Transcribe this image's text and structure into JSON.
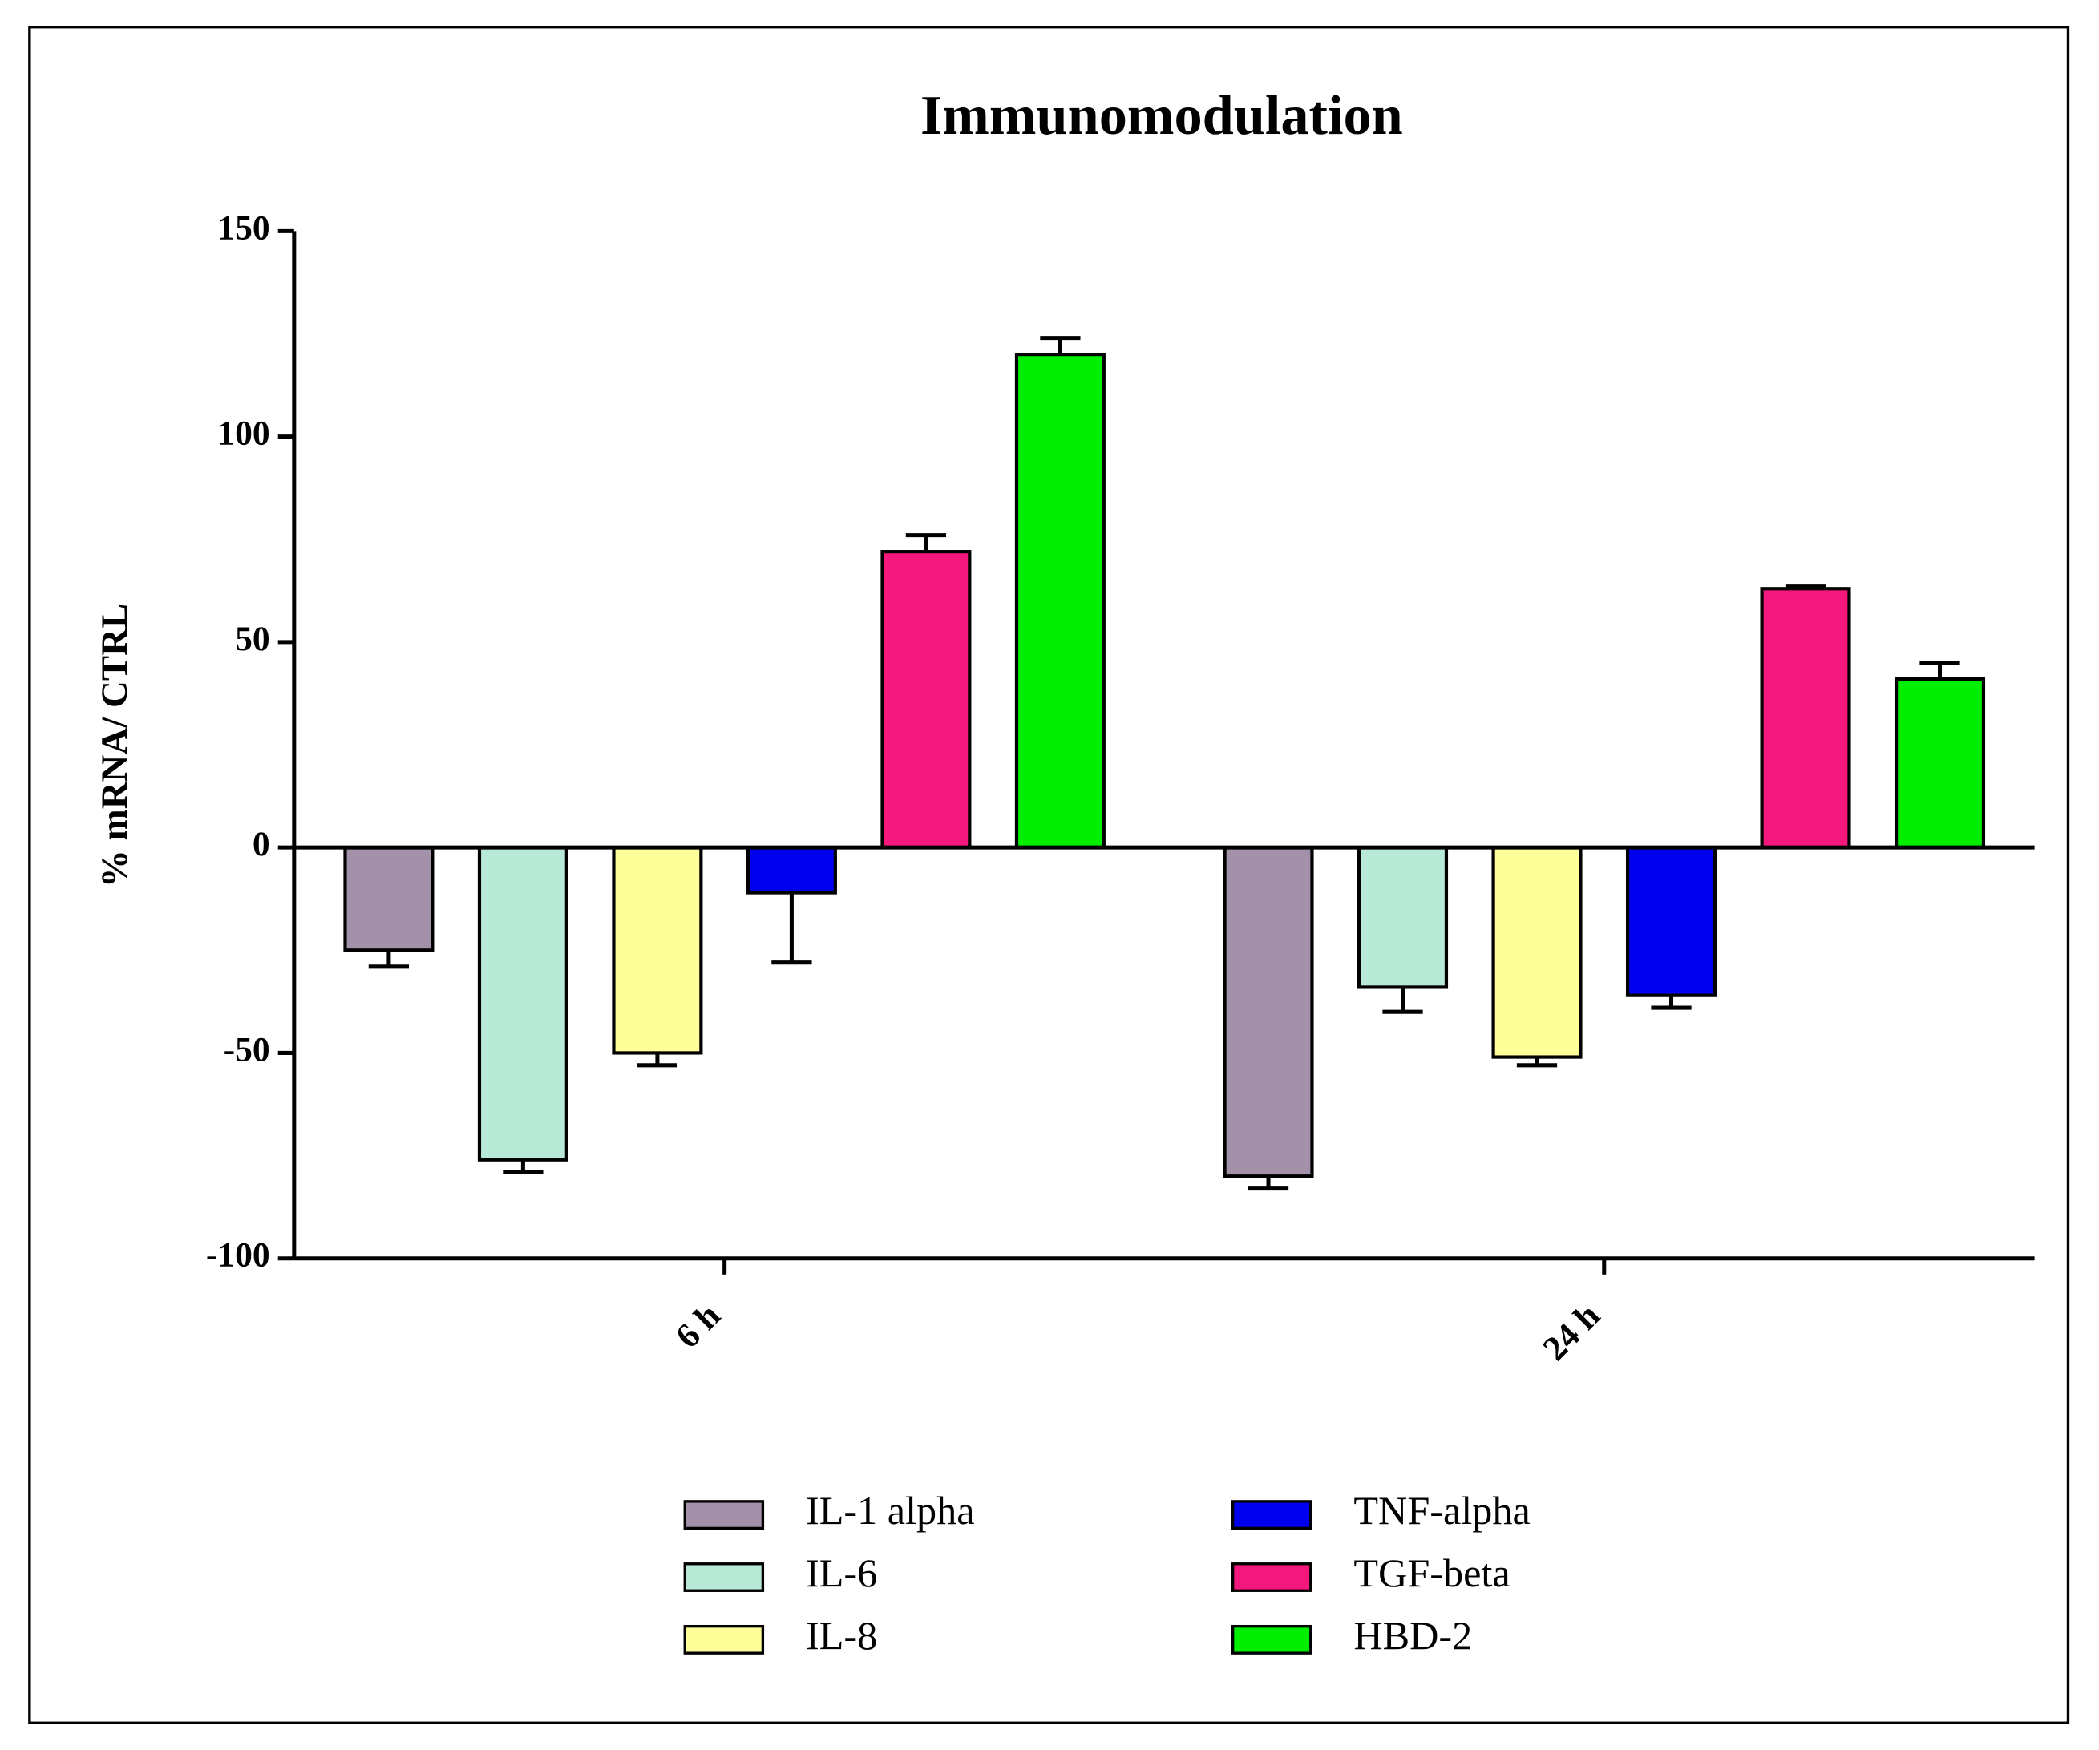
{
  "chart_data": {
    "type": "bar",
    "title": "Immunomodulation",
    "ylabel": "% mRNA/ CTRL",
    "categories": [
      "6 h",
      "24 h"
    ],
    "series": [
      {
        "name": "IL-1 alpha",
        "color": "#a391aa",
        "values": [
          -25,
          -80
        ],
        "errors": [
          4,
          3
        ]
      },
      {
        "name": "IL-6",
        "color": "#b8e8d6",
        "values": [
          -76,
          -34
        ],
        "errors": [
          3,
          6
        ]
      },
      {
        "name": "IL-8",
        "color": "#ffff99",
        "values": [
          -50,
          -51
        ],
        "errors": [
          3,
          2
        ]
      },
      {
        "name": "TNF-alpha",
        "color": "#0000ee",
        "values": [
          -11,
          -36
        ],
        "errors": [
          17,
          3
        ]
      },
      {
        "name": "TGF-beta",
        "color": "#f5187c",
        "values": [
          72,
          63
        ],
        "errors": [
          4,
          0.5
        ]
      },
      {
        "name": "HBD-2",
        "color": "#00ee00",
        "values": [
          120,
          41
        ],
        "errors": [
          4,
          4
        ]
      }
    ],
    "ylim": [
      -100,
      150
    ],
    "yticks": [
      -100,
      -50,
      0,
      50,
      100,
      150
    ],
    "grid": false,
    "legend": "bottom"
  }
}
